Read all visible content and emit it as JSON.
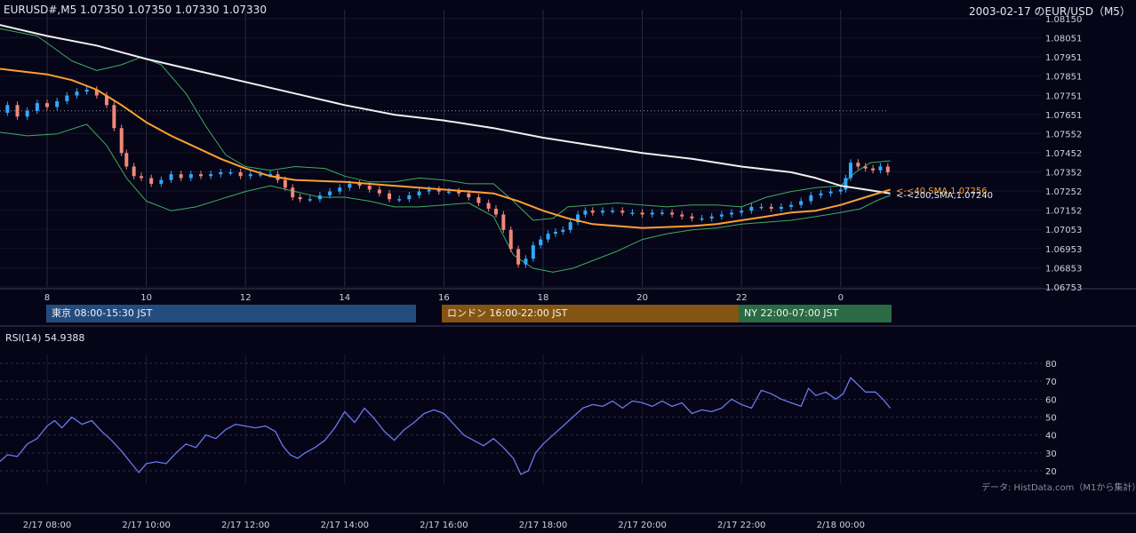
{
  "header": {
    "left_title": "EURUSD#,M5 1.07350 1.07350 1.07330 1.07330",
    "right_title": "2003-02-17 のEUR/USD（M5）"
  },
  "sessions": [
    {
      "label": "東京 08:00-15:30 JST",
      "color": "#234c7e"
    },
    {
      "label": "ロンドン 16:00-22:00 JST",
      "color": "#845512"
    },
    {
      "label": "NY 22:00-07:00 JST",
      "color": "#2a6a44"
    }
  ],
  "rsi_label": "RSI(14) 54.9388",
  "source_note": "データ: HistData.com（M1から集計）",
  "colors": {
    "background": "#050517",
    "up_candle": "#33a8ff",
    "down_candle": "#f08878",
    "sma200": "#f0f0f0",
    "sma40": "#ffa030",
    "bollinger": "#3faa60",
    "rsi": "#6c78f0"
  },
  "chart_data": [
    {
      "type": "candlestick",
      "symbol": "EURUSD#",
      "timeframe": "M5",
      "y_ticks": [
        "1.08150",
        "1.08051",
        "1.07951",
        "1.07851",
        "1.07751",
        "1.07651",
        "1.07552",
        "1.07452",
        "1.07352",
        "1.07252",
        "1.07152",
        "1.07053",
        "1.06953",
        "1.06853",
        "1.06753"
      ],
      "ylim": [
        1.06753,
        1.0815
      ],
      "x_ticks": [
        "8",
        "10",
        "12",
        "14",
        "16",
        "18",
        "20",
        "22",
        "0"
      ],
      "reference_level": 1.0767,
      "annotations": [
        "<-<40,SMA,1.07256",
        "<-<200,SMA,1.07240"
      ],
      "sma200": [
        [
          7.0,
          1.0812
        ],
        [
          8.0,
          1.0806
        ],
        [
          9.0,
          1.0801
        ],
        [
          10.0,
          1.0794
        ],
        [
          11.0,
          1.0788
        ],
        [
          12.0,
          1.0782
        ],
        [
          13.0,
          1.0776
        ],
        [
          14.0,
          1.077
        ],
        [
          15.0,
          1.0765
        ],
        [
          16.0,
          1.0762
        ],
        [
          17.0,
          1.0758
        ],
        [
          18.0,
          1.0753
        ],
        [
          19.0,
          1.0749
        ],
        [
          20.0,
          1.0745
        ],
        [
          21.0,
          1.0742
        ],
        [
          22.0,
          1.0738
        ],
        [
          23.0,
          1.0735
        ],
        [
          23.5,
          1.0732
        ],
        [
          24.0,
          1.0728
        ],
        [
          24.5,
          1.0726
        ],
        [
          25.0,
          1.0724
        ]
      ],
      "sma40": [
        [
          7.0,
          1.0789
        ],
        [
          8.0,
          1.0786
        ],
        [
          8.5,
          1.0783
        ],
        [
          9.0,
          1.0778
        ],
        [
          9.5,
          1.077
        ],
        [
          10.0,
          1.0761
        ],
        [
          10.5,
          1.0754
        ],
        [
          11.0,
          1.0748
        ],
        [
          11.5,
          1.0742
        ],
        [
          12.0,
          1.0737
        ],
        [
          12.5,
          1.0733
        ],
        [
          13.0,
          1.0731
        ],
        [
          14.0,
          1.073
        ],
        [
          15.0,
          1.0728
        ],
        [
          16.0,
          1.0726
        ],
        [
          17.0,
          1.0724
        ],
        [
          17.5,
          1.072
        ],
        [
          18.0,
          1.0715
        ],
        [
          18.5,
          1.0711
        ],
        [
          19.0,
          1.0708
        ],
        [
          20.0,
          1.0706
        ],
        [
          21.0,
          1.0707
        ],
        [
          21.5,
          1.0708
        ],
        [
          22.0,
          1.071
        ],
        [
          22.5,
          1.0712
        ],
        [
          23.0,
          1.0714
        ],
        [
          23.5,
          1.0715
        ],
        [
          24.0,
          1.0718
        ],
        [
          24.5,
          1.0722
        ],
        [
          25.0,
          1.0726
        ]
      ],
      "bollinger_upper": [
        [
          7.0,
          1.081
        ],
        [
          7.8,
          1.0806
        ],
        [
          8.5,
          1.0793
        ],
        [
          9.0,
          1.0788
        ],
        [
          9.5,
          1.0791
        ],
        [
          9.9,
          1.0795
        ],
        [
          10.3,
          1.0791
        ],
        [
          10.8,
          1.0776
        ],
        [
          11.2,
          1.0759
        ],
        [
          11.6,
          1.0744
        ],
        [
          12.0,
          1.0738
        ],
        [
          12.5,
          1.0736
        ],
        [
          13.0,
          1.0738
        ],
        [
          13.6,
          1.0737
        ],
        [
          14.0,
          1.0733
        ],
        [
          14.5,
          1.073
        ],
        [
          15.0,
          1.073
        ],
        [
          15.5,
          1.0732
        ],
        [
          16.0,
          1.0731
        ],
        [
          16.5,
          1.0729
        ],
        [
          17.0,
          1.0729
        ],
        [
          17.4,
          1.072
        ],
        [
          17.8,
          1.071
        ],
        [
          18.2,
          1.0711
        ],
        [
          18.5,
          1.0717
        ],
        [
          19.0,
          1.0718
        ],
        [
          19.5,
          1.0719
        ],
        [
          20.0,
          1.0718
        ],
        [
          20.5,
          1.0717
        ],
        [
          21.0,
          1.0718
        ],
        [
          21.5,
          1.0718
        ],
        [
          22.0,
          1.0717
        ],
        [
          22.5,
          1.0722
        ],
        [
          23.0,
          1.0725
        ],
        [
          23.5,
          1.0727
        ],
        [
          24.0,
          1.0728
        ],
        [
          24.3,
          1.0735
        ],
        [
          24.6,
          1.074
        ],
        [
          25.0,
          1.0741
        ]
      ],
      "bollinger_lower": [
        [
          7.0,
          1.0756
        ],
        [
          7.6,
          1.0754
        ],
        [
          8.2,
          1.0755
        ],
        [
          8.8,
          1.076
        ],
        [
          9.2,
          1.0749
        ],
        [
          9.6,
          1.0732
        ],
        [
          10.0,
          1.072
        ],
        [
          10.5,
          1.0715
        ],
        [
          11.0,
          1.0717
        ],
        [
          11.5,
          1.0721
        ],
        [
          12.0,
          1.0725
        ],
        [
          12.5,
          1.0728
        ],
        [
          13.0,
          1.0725
        ],
        [
          13.5,
          1.0722
        ],
        [
          14.0,
          1.0722
        ],
        [
          14.5,
          1.072
        ],
        [
          15.0,
          1.0717
        ],
        [
          15.5,
          1.0717
        ],
        [
          16.0,
          1.0718
        ],
        [
          16.5,
          1.0719
        ],
        [
          17.0,
          1.0712
        ],
        [
          17.4,
          1.0692
        ],
        [
          17.8,
          1.0685
        ],
        [
          18.2,
          1.0683
        ],
        [
          18.6,
          1.0685
        ],
        [
          19.0,
          1.0689
        ],
        [
          19.5,
          1.0694
        ],
        [
          20.0,
          1.07
        ],
        [
          20.5,
          1.0703
        ],
        [
          21.0,
          1.0705
        ],
        [
          21.5,
          1.0706
        ],
        [
          22.0,
          1.0708
        ],
        [
          22.5,
          1.0709
        ],
        [
          23.0,
          1.071
        ],
        [
          23.5,
          1.0712
        ],
        [
          24.0,
          1.0714
        ],
        [
          24.4,
          1.0716
        ],
        [
          24.7,
          1.072
        ],
        [
          25.0,
          1.0723
        ]
      ],
      "close_series": [
        [
          7.0,
          1.0766
        ],
        [
          7.2,
          1.077
        ],
        [
          7.4,
          1.0764
        ],
        [
          7.6,
          1.0767
        ],
        [
          7.8,
          1.0771
        ],
        [
          8.0,
          1.0769
        ],
        [
          8.2,
          1.0772
        ],
        [
          8.4,
          1.0775
        ],
        [
          8.6,
          1.0777
        ],
        [
          8.8,
          1.0778
        ],
        [
          9.0,
          1.0775
        ],
        [
          9.2,
          1.077
        ],
        [
          9.35,
          1.0758
        ],
        [
          9.5,
          1.0745
        ],
        [
          9.6,
          1.0738
        ],
        [
          9.75,
          1.0733
        ],
        [
          9.9,
          1.0732
        ],
        [
          10.1,
          1.0729
        ],
        [
          10.3,
          1.0731
        ],
        [
          10.5,
          1.0734
        ],
        [
          10.7,
          1.0732
        ],
        [
          10.9,
          1.0734
        ],
        [
          11.1,
          1.0733
        ],
        [
          11.3,
          1.0734
        ],
        [
          11.5,
          1.0735
        ],
        [
          11.7,
          1.0735
        ],
        [
          11.9,
          1.0733
        ],
        [
          12.1,
          1.0734
        ],
        [
          12.3,
          1.0734
        ],
        [
          12.5,
          1.0734
        ],
        [
          12.65,
          1.0731
        ],
        [
          12.8,
          1.0727
        ],
        [
          12.95,
          1.0722
        ],
        [
          13.1,
          1.0721
        ],
        [
          13.3,
          1.0721
        ],
        [
          13.5,
          1.0723
        ],
        [
          13.7,
          1.0725
        ],
        [
          13.9,
          1.0727
        ],
        [
          14.1,
          1.0729
        ],
        [
          14.3,
          1.0728
        ],
        [
          14.5,
          1.0726
        ],
        [
          14.7,
          1.0724
        ],
        [
          14.9,
          1.0721
        ],
        [
          15.1,
          1.0721
        ],
        [
          15.3,
          1.0723
        ],
        [
          15.5,
          1.0725
        ],
        [
          15.7,
          1.0726
        ],
        [
          15.9,
          1.0725
        ],
        [
          16.1,
          1.0725
        ],
        [
          16.3,
          1.0724
        ],
        [
          16.5,
          1.0722
        ],
        [
          16.7,
          1.0719
        ],
        [
          16.9,
          1.0716
        ],
        [
          17.05,
          1.0713
        ],
        [
          17.2,
          1.0705
        ],
        [
          17.35,
          1.0695
        ],
        [
          17.5,
          1.0687
        ],
        [
          17.65,
          1.069
        ],
        [
          17.8,
          1.0697
        ],
        [
          17.95,
          1.07
        ],
        [
          18.1,
          1.0703
        ],
        [
          18.25,
          1.0704
        ],
        [
          18.4,
          1.0705
        ],
        [
          18.55,
          1.0709
        ],
        [
          18.7,
          1.0713
        ],
        [
          18.85,
          1.0715
        ],
        [
          19.0,
          1.0714
        ],
        [
          19.2,
          1.0715
        ],
        [
          19.4,
          1.0715
        ],
        [
          19.6,
          1.0714
        ],
        [
          19.8,
          1.0714
        ],
        [
          20.0,
          1.0713
        ],
        [
          20.2,
          1.0714
        ],
        [
          20.4,
          1.0714
        ],
        [
          20.6,
          1.0713
        ],
        [
          20.8,
          1.0712
        ],
        [
          21.0,
          1.0711
        ],
        [
          21.2,
          1.0711
        ],
        [
          21.4,
          1.0712
        ],
        [
          21.6,
          1.0713
        ],
        [
          21.8,
          1.0714
        ],
        [
          22.0,
          1.0715
        ],
        [
          22.2,
          1.0717
        ],
        [
          22.4,
          1.0717
        ],
        [
          22.6,
          1.0716
        ],
        [
          22.8,
          1.0717
        ],
        [
          23.0,
          1.0718
        ],
        [
          23.2,
          1.072
        ],
        [
          23.4,
          1.0723
        ],
        [
          23.6,
          1.0724
        ],
        [
          23.8,
          1.0725
        ],
        [
          24.0,
          1.0726
        ],
        [
          24.1,
          1.0732
        ],
        [
          24.2,
          1.074
        ],
        [
          24.35,
          1.0738
        ],
        [
          24.5,
          1.0737
        ],
        [
          24.65,
          1.0736
        ],
        [
          24.8,
          1.0738
        ],
        [
          24.95,
          1.0735
        ]
      ]
    },
    {
      "type": "line",
      "indicator": "RSI(14)",
      "value": 54.9388,
      "y_ticks": [
        "80",
        "70",
        "60",
        "50",
        "40",
        "30",
        "20"
      ],
      "ylim": [
        20,
        80
      ],
      "x_tick_labels": [
        "2/17 08:00",
        "2/17 10:00",
        "2/17 12:00",
        "2/17 14:00",
        "2/17 16:00",
        "2/17 18:00",
        "2/17 20:00",
        "2/17 22:00",
        "2/18 00:00"
      ],
      "series": [
        [
          7.0,
          24
        ],
        [
          7.2,
          29
        ],
        [
          7.4,
          28
        ],
        [
          7.6,
          35
        ],
        [
          7.8,
          38
        ],
        [
          8.0,
          45
        ],
        [
          8.15,
          48
        ],
        [
          8.3,
          44
        ],
        [
          8.5,
          50
        ],
        [
          8.7,
          46
        ],
        [
          8.9,
          48
        ],
        [
          9.1,
          42
        ],
        [
          9.3,
          37
        ],
        [
          9.5,
          31
        ],
        [
          9.7,
          24
        ],
        [
          9.85,
          19
        ],
        [
          10.0,
          24
        ],
        [
          10.2,
          25
        ],
        [
          10.4,
          24
        ],
        [
          10.6,
          30
        ],
        [
          10.8,
          35
        ],
        [
          11.0,
          33
        ],
        [
          11.2,
          40
        ],
        [
          11.4,
          38
        ],
        [
          11.6,
          43
        ],
        [
          11.8,
          46
        ],
        [
          12.0,
          45
        ],
        [
          12.2,
          44
        ],
        [
          12.4,
          45
        ],
        [
          12.6,
          42
        ],
        [
          12.75,
          34
        ],
        [
          12.9,
          29
        ],
        [
          13.05,
          27
        ],
        [
          13.2,
          30
        ],
        [
          13.4,
          33
        ],
        [
          13.6,
          37
        ],
        [
          13.8,
          44
        ],
        [
          14.0,
          53
        ],
        [
          14.2,
          47
        ],
        [
          14.4,
          55
        ],
        [
          14.6,
          49
        ],
        [
          14.8,
          42
        ],
        [
          15.0,
          37
        ],
        [
          15.2,
          43
        ],
        [
          15.4,
          47
        ],
        [
          15.6,
          52
        ],
        [
          15.8,
          54
        ],
        [
          16.0,
          52
        ],
        [
          16.2,
          46
        ],
        [
          16.4,
          40
        ],
        [
          16.6,
          37
        ],
        [
          16.8,
          34
        ],
        [
          17.0,
          38
        ],
        [
          17.2,
          33
        ],
        [
          17.4,
          27
        ],
        [
          17.55,
          18
        ],
        [
          17.7,
          20
        ],
        [
          17.85,
          30
        ],
        [
          18.0,
          35
        ],
        [
          18.2,
          40
        ],
        [
          18.4,
          45
        ],
        [
          18.6,
          50
        ],
        [
          18.8,
          55
        ],
        [
          19.0,
          57
        ],
        [
          19.2,
          56
        ],
        [
          19.4,
          59
        ],
        [
          19.6,
          55
        ],
        [
          19.8,
          59
        ],
        [
          20.0,
          58
        ],
        [
          20.2,
          56
        ],
        [
          20.4,
          59
        ],
        [
          20.6,
          56
        ],
        [
          20.8,
          58
        ],
        [
          21.0,
          52
        ],
        [
          21.2,
          54
        ],
        [
          21.4,
          53
        ],
        [
          21.6,
          55
        ],
        [
          21.8,
          60
        ],
        [
          22.0,
          57
        ],
        [
          22.2,
          55
        ],
        [
          22.4,
          65
        ],
        [
          22.6,
          63
        ],
        [
          22.8,
          60
        ],
        [
          23.0,
          58
        ],
        [
          23.2,
          56
        ],
        [
          23.35,
          66
        ],
        [
          23.5,
          62
        ],
        [
          23.7,
          64
        ],
        [
          23.9,
          60
        ],
        [
          24.05,
          63
        ],
        [
          24.2,
          72
        ],
        [
          24.35,
          68
        ],
        [
          24.5,
          64
        ],
        [
          24.7,
          64
        ],
        [
          24.85,
          60
        ],
        [
          25.0,
          55
        ]
      ]
    }
  ]
}
